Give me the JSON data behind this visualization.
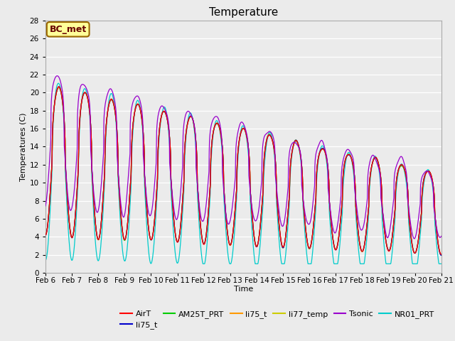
{
  "title": "Temperature",
  "xlabel": "Time",
  "ylabel": "Temperatures (C)",
  "ylim": [
    0,
    28
  ],
  "x_tick_labels": [
    "Feb 6",
    "Feb 7",
    "Feb 8",
    "Feb 9",
    "Feb 10",
    "Feb 11",
    "Feb 12",
    "Feb 13",
    "Feb 14",
    "Feb 15",
    "Feb 16",
    "Feb 17",
    "Feb 18",
    "Feb 19",
    "Feb 20",
    "Feb 21"
  ],
  "plot_bg": "#ebebeb",
  "fig_bg": "#ebebeb",
  "legend_entries": [
    "AirT",
    "li75_t",
    "AM25T_PRT",
    "li75_t",
    "li77_temp",
    "Tsonic",
    "NR01_PRT"
  ],
  "legend_colors": [
    "#ff0000",
    "#0000cc",
    "#00cc00",
    "#ff9900",
    "#cccc00",
    "#9900cc",
    "#00cccc"
  ],
  "annotation_text": "BC_met",
  "annotation_bg": "#ffff99",
  "annotation_border": "#996600",
  "annotation_text_color": "#660000",
  "days": 15,
  "n_points": 1500,
  "title_fontsize": 11,
  "axis_fontsize": 8,
  "legend_fontsize": 8
}
